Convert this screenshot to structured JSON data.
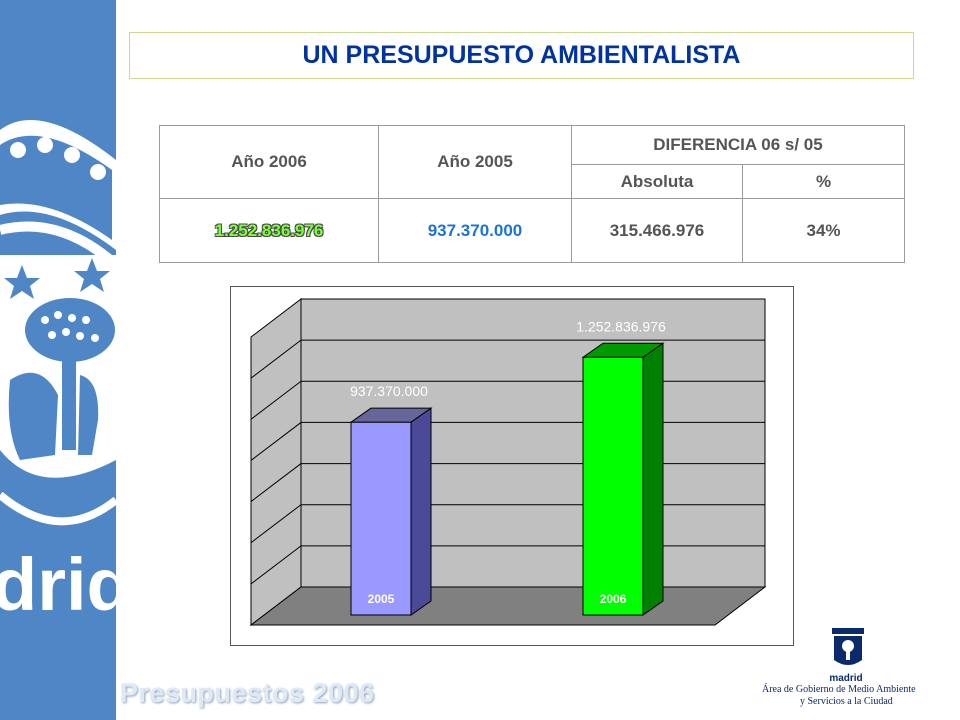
{
  "title": "UN PRESUPUESTO AMBIENTALISTA",
  "footer_label": "Presupuestos 2006",
  "sidebar_wordmark": "drid",
  "table": {
    "col_2006": "Año 2006",
    "col_2005": "Año 2005",
    "col_diff": "DIFERENCIA 06 s/ 05",
    "col_abs": "Absoluta",
    "col_pct": "%",
    "val_2006": "1.252.836.976",
    "val_2005": "937.370.000",
    "val_abs": "315.466.976",
    "val_pct": "34%"
  },
  "chart_data": {
    "type": "bar",
    "categories": [
      "2005",
      "2006"
    ],
    "values": [
      937370000,
      1252836976
    ],
    "value_labels": [
      "937.370.000",
      "1.252.836.976"
    ],
    "colors": [
      "#9999ff",
      "#00ff00"
    ],
    "title": "",
    "xlabel": "",
    "ylabel": "",
    "ylim": [
      0,
      1400000000
    ],
    "grid": true,
    "style": "3d"
  },
  "logo": {
    "name": "madrid",
    "line1": "Área de Gobierno de Medio Ambiente",
    "line2": "y Servicios a la Ciudad"
  }
}
